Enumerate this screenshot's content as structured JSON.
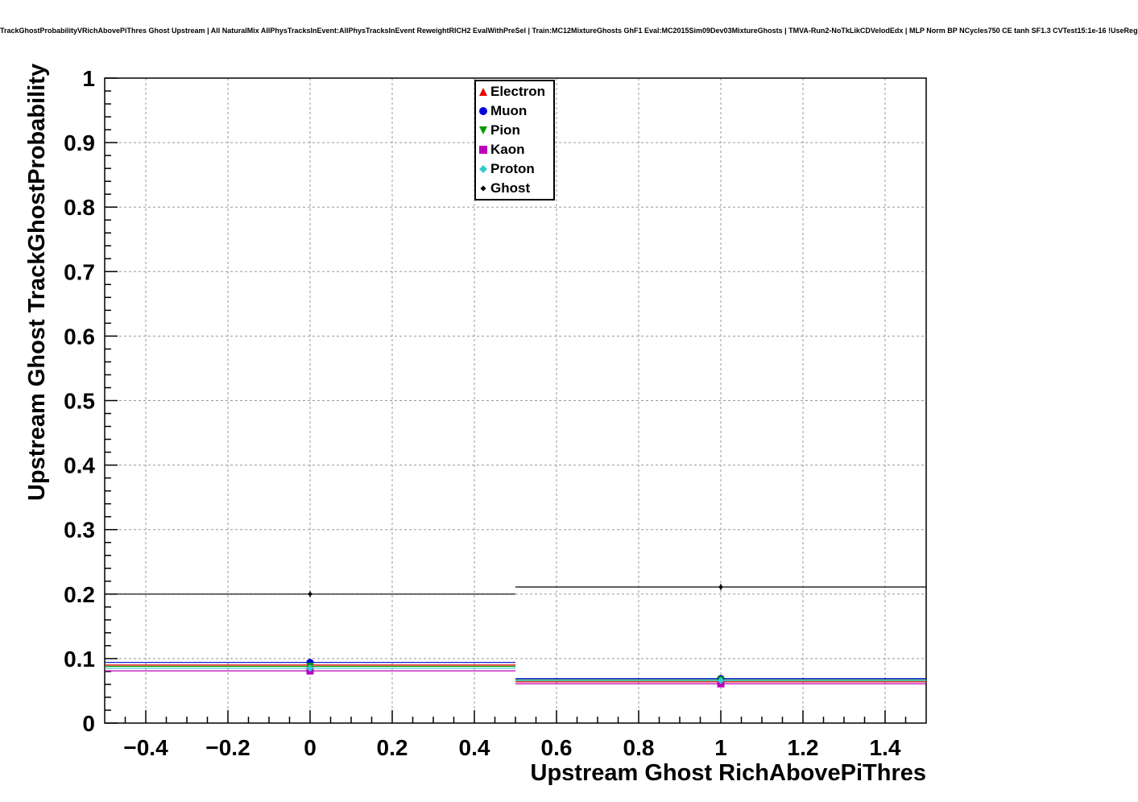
{
  "title": "TrackGhostProbabilityVRichAbovePiThres Ghost Upstream | All NaturalMix AllPhysTracksInEvent:AllPhysTracksInEvent ReweightRICH2 EvalWithPreSel | Train:MC12MixtureGhosts GhF1 Eval:MC2015Sim09Dev03MixtureGhosts | TMVA-Run2-NoTkLikCDVelodEdx | MLP Norm BP NCycles750 CE tanh SF1.3 CVTest15:1e-16 !UseReg",
  "chart_data": {
    "type": "line",
    "title": "TrackGhostProbabilityVRichAbovePiThres Ghost Upstream",
    "xlabel": "Upstream Ghost RichAbovePiThres",
    "ylabel": "Upstream Ghost TrackGhostProbability",
    "xlim": [
      -0.5,
      1.5
    ],
    "ylim": [
      0,
      1
    ],
    "grid": true,
    "legend_position": "top-center",
    "x": [
      0,
      1
    ],
    "bin_edges": [
      -0.5,
      0.5,
      1.5
    ],
    "x_ticks": [
      -0.4,
      -0.2,
      0,
      0.2,
      0.4,
      0.6,
      0.8,
      1,
      1.2,
      1.4
    ],
    "x_tick_labels": [
      "−0.4",
      "−0.2",
      "0",
      "0.2",
      "0.4",
      "0.6",
      "0.8",
      "1",
      "1.2",
      "1.4"
    ],
    "y_ticks": [
      0,
      0.1,
      0.2,
      0.3,
      0.4,
      0.5,
      0.6,
      0.7,
      0.8,
      0.9,
      1
    ],
    "y_tick_labels": [
      "0",
      "0.1",
      "0.2",
      "0.3",
      "0.4",
      "0.5",
      "0.6",
      "0.7",
      "0.8",
      "0.9",
      "1"
    ],
    "series": [
      {
        "name": "Electron",
        "color": "#ee0000",
        "marker": "triangle-up",
        "values": [
          0.09,
          0.064
        ]
      },
      {
        "name": "Muon",
        "color": "#0000dd",
        "marker": "circle",
        "values": [
          0.094,
          0.069
        ]
      },
      {
        "name": "Pion",
        "color": "#009900",
        "marker": "triangle-down",
        "values": [
          0.088,
          0.067
        ]
      },
      {
        "name": "Kaon",
        "color": "#bb00bb",
        "marker": "square",
        "values": [
          0.081,
          0.061
        ]
      },
      {
        "name": "Proton",
        "color": "#33cccc",
        "marker": "diamond",
        "values": [
          0.085,
          0.066
        ]
      },
      {
        "name": "Ghost",
        "color": "#000000",
        "marker": "small-diamond",
        "values": [
          0.2,
          0.211
        ]
      }
    ]
  }
}
